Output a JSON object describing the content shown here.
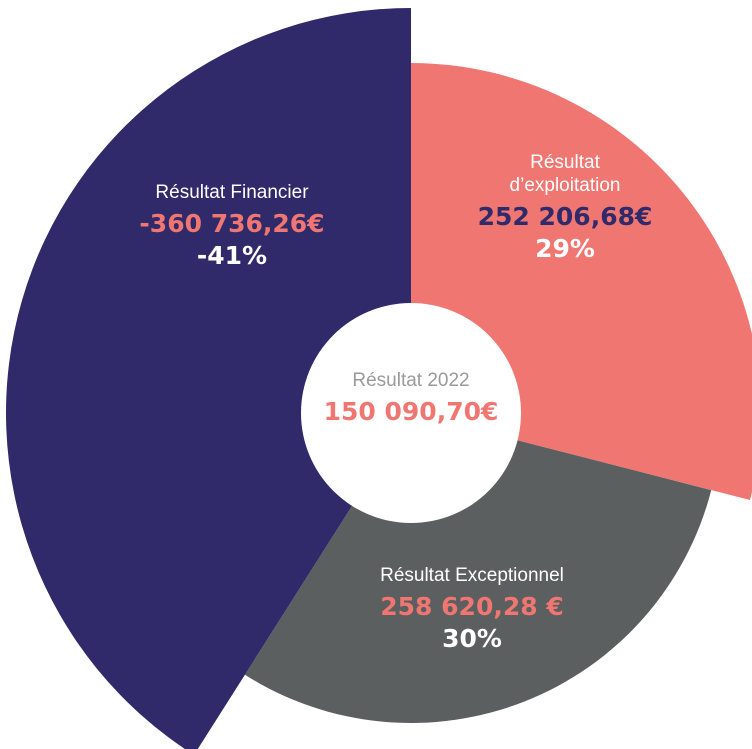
{
  "chart_data": {
    "type": "pie",
    "categories": [
      "Résultat\nd’exploitation",
      "Résultat Exceptionnel",
      "Résultat Financier"
    ],
    "values": [
      29,
      30,
      -41
    ],
    "value_labels": [
      "29%",
      "30%",
      "-41%"
    ],
    "amounts": [
      "252 206,68€",
      "258 620,28   €",
      "-360 736,26€"
    ],
    "colors": [
      "#f07672",
      "#5c5f60",
      "#302a6a"
    ],
    "amount_colors": [
      "#302a6a",
      "#f07672",
      "#f07672"
    ],
    "center_title": "Résultat 2022",
    "center_value": "150 090,70€"
  }
}
